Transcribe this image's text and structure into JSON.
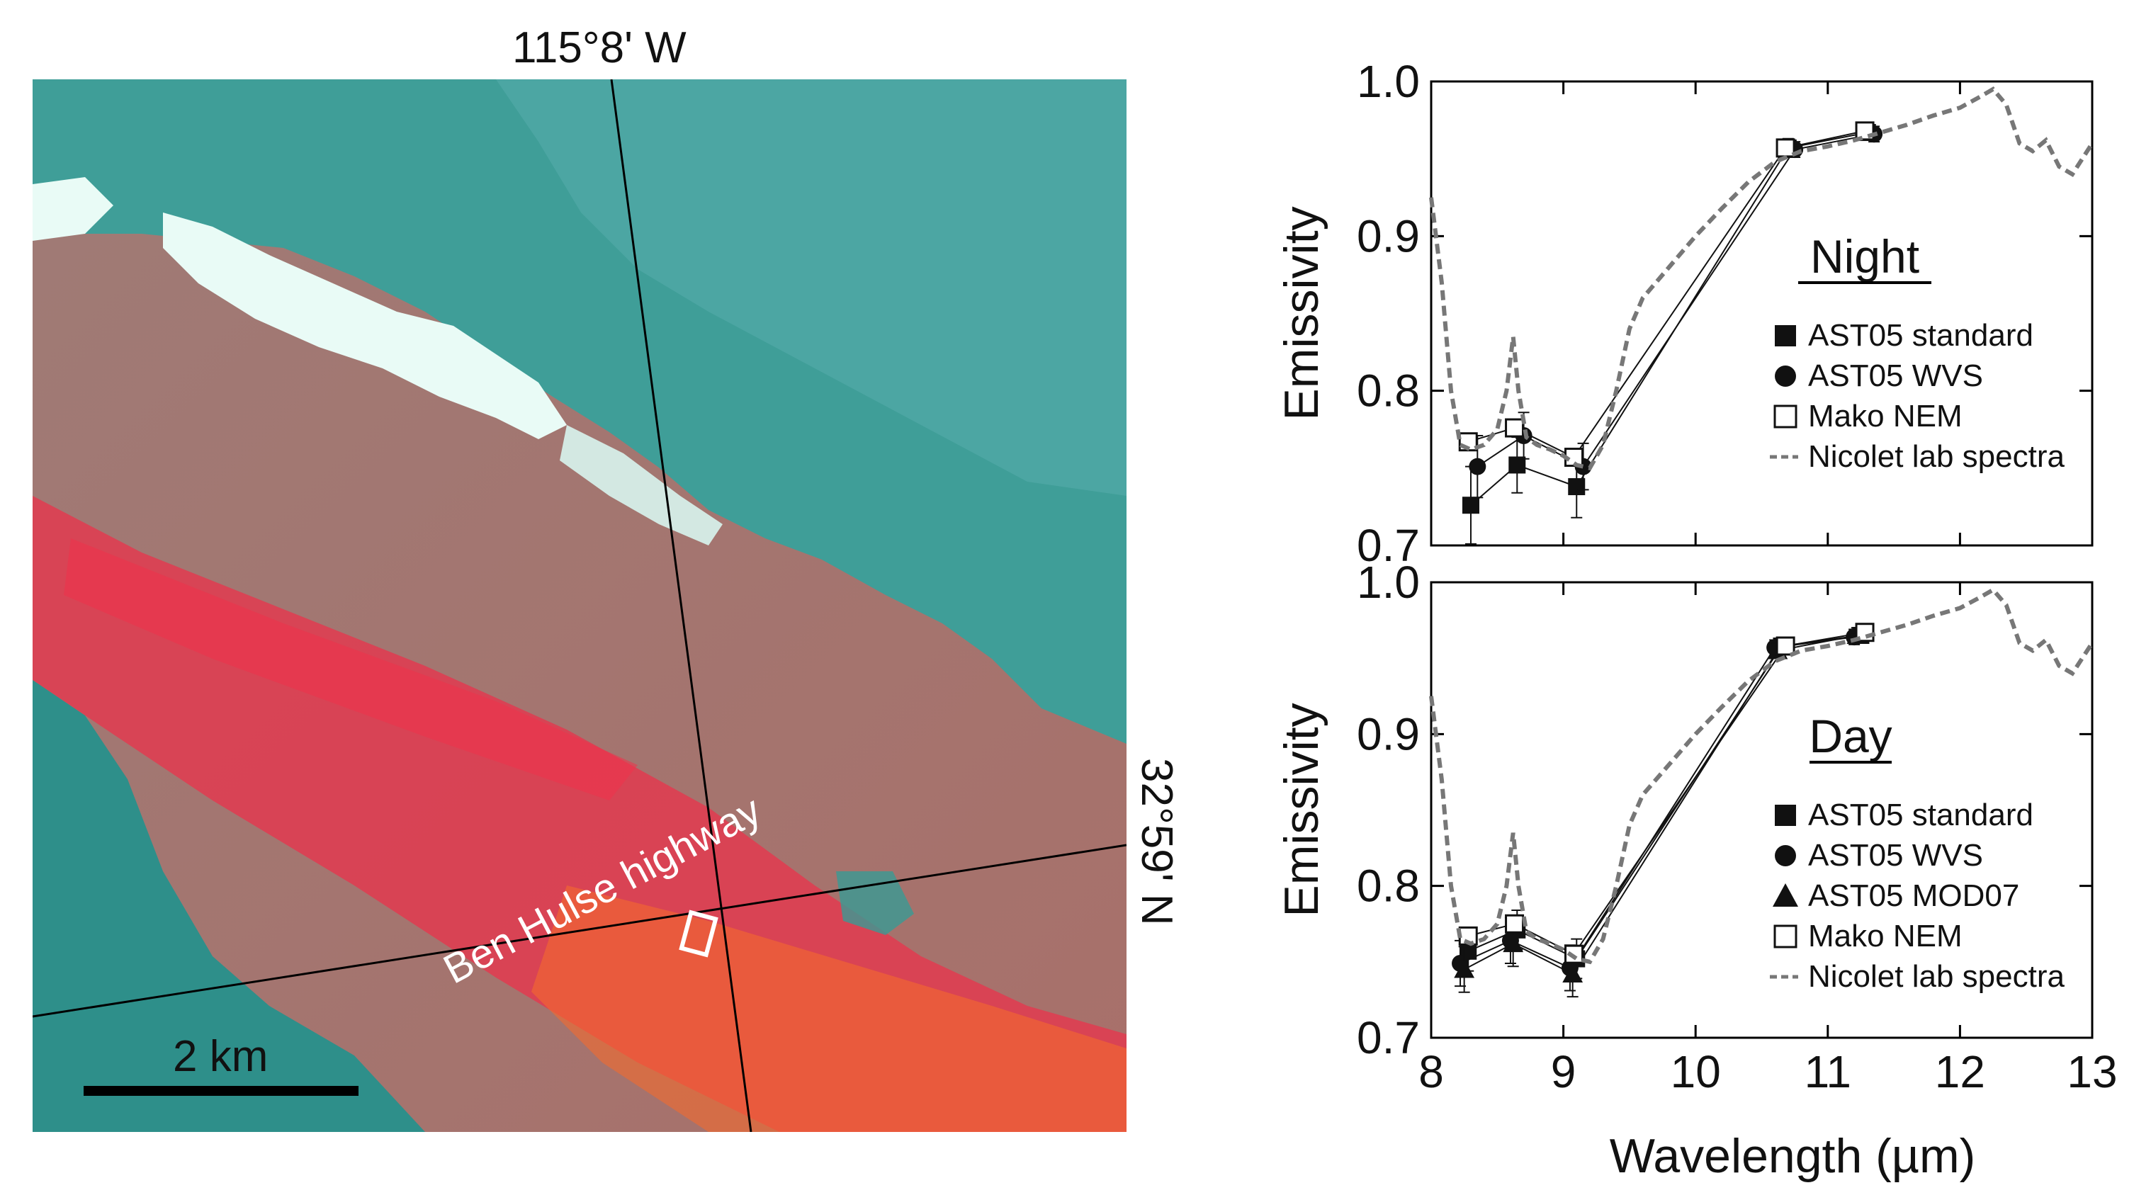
{
  "map": {
    "longitude_label": "115°8' W",
    "latitude_label": "32°59' N",
    "highway_label": "Ben Hulse highway",
    "scale_label": "2 km",
    "colors": {
      "vegetation": "#3f9e98",
      "bright_veg": "#e9fbf6",
      "bare_soil": "#9f7b76",
      "red_zone": "#e8384c",
      "orange": "#f46a2e",
      "teal_edge": "#2e8f8a"
    }
  },
  "chart_data": [
    {
      "type": "line",
      "panel": "Night",
      "title": "Night",
      "xlabel": "Wavelength (µm)",
      "ylabel": "Emissivity",
      "xlim": [
        8,
        13
      ],
      "ylim": [
        0.7,
        1.0
      ],
      "xticks": [
        "8",
        "9",
        "10",
        "11",
        "12",
        "13"
      ],
      "yticks": [
        "0.7",
        "0.8",
        "0.9",
        "1.0"
      ],
      "series": [
        {
          "name": "AST05 standard",
          "marker": "filled-square",
          "x": [
            8.3,
            8.65,
            9.1,
            10.7,
            11.3
          ],
          "y": [
            0.726,
            0.752,
            0.738,
            0.957,
            0.967
          ],
          "err": [
            0.025,
            0.018,
            0.02,
            0.006,
            0.005
          ]
        },
        {
          "name": "AST05 WVS",
          "marker": "filled-circle",
          "x": [
            8.35,
            8.7,
            9.15,
            10.75,
            11.35
          ],
          "y": [
            0.751,
            0.771,
            0.751,
            0.956,
            0.966
          ],
          "err": [
            0.02,
            0.015,
            0.015,
            0.005,
            0.005
          ]
        },
        {
          "name": "Mako NEM",
          "marker": "open-square",
          "x": [
            8.28,
            8.63,
            9.08,
            10.68,
            11.28
          ],
          "y": [
            0.767,
            0.776,
            0.757,
            0.957,
            0.968
          ],
          "err": [
            0,
            0,
            0,
            0,
            0
          ]
        },
        {
          "name": "Nicolet lab spectra",
          "marker": "dashed-line",
          "x": [
            8.0,
            8.08,
            8.15,
            8.22,
            8.3,
            8.4,
            8.5,
            8.57,
            8.62,
            8.66,
            8.72,
            8.8,
            8.9,
            9.0,
            9.1,
            9.2,
            9.3,
            9.4,
            9.5,
            9.6,
            9.8,
            10.0,
            10.2,
            10.4,
            10.6,
            10.8,
            11.0,
            11.2,
            11.4,
            11.6,
            11.8,
            12.0,
            12.15,
            12.25,
            12.35,
            12.45,
            12.55,
            12.65,
            12.75,
            12.85,
            13.0
          ],
          "y": [
            0.925,
            0.87,
            0.8,
            0.765,
            0.762,
            0.765,
            0.775,
            0.8,
            0.835,
            0.8,
            0.77,
            0.765,
            0.762,
            0.758,
            0.752,
            0.75,
            0.765,
            0.8,
            0.84,
            0.86,
            0.88,
            0.9,
            0.918,
            0.935,
            0.948,
            0.955,
            0.958,
            0.962,
            0.967,
            0.972,
            0.978,
            0.983,
            0.99,
            0.995,
            0.985,
            0.96,
            0.955,
            0.962,
            0.945,
            0.94,
            0.96
          ]
        }
      ]
    },
    {
      "type": "line",
      "panel": "Day",
      "title": "Day",
      "xlabel": "Wavelength (µm)",
      "ylabel": "Emissivity",
      "xlim": [
        8,
        13
      ],
      "ylim": [
        0.7,
        1.0
      ],
      "xticks": [
        "8",
        "9",
        "10",
        "11",
        "12",
        "13"
      ],
      "yticks": [
        "0.7",
        "0.8",
        "0.9",
        "1.0"
      ],
      "series": [
        {
          "name": "AST05 standard",
          "marker": "filled-square",
          "x": [
            8.28,
            8.65,
            9.1,
            10.65,
            11.25
          ],
          "y": [
            0.757,
            0.771,
            0.752,
            0.958,
            0.965
          ],
          "err": [
            0.013,
            0.013,
            0.013,
            0.005,
            0.005
          ]
        },
        {
          "name": "AST05 WVS",
          "marker": "filled-circle",
          "x": [
            8.22,
            8.6,
            9.05,
            10.6,
            11.2
          ],
          "y": [
            0.749,
            0.764,
            0.746,
            0.957,
            0.964
          ],
          "err": [
            0.015,
            0.015,
            0.015,
            0.005,
            0.005
          ]
        },
        {
          "name": "AST05 MOD07",
          "marker": "filled-triangle",
          "x": [
            8.25,
            8.62,
            9.07,
            10.62,
            11.22
          ],
          "y": [
            0.745,
            0.762,
            0.742,
            0.955,
            0.965
          ],
          "err": [
            0.015,
            0.015,
            0.015,
            0.005,
            0.005
          ]
        },
        {
          "name": "Mako NEM",
          "marker": "open-square",
          "x": [
            8.28,
            8.63,
            9.08,
            10.68,
            11.28
          ],
          "y": [
            0.767,
            0.775,
            0.755,
            0.958,
            0.967
          ],
          "err": [
            0,
            0,
            0,
            0,
            0
          ]
        },
        {
          "name": "Nicolet lab spectra",
          "marker": "dashed-line",
          "x": [
            8.0,
            8.08,
            8.15,
            8.22,
            8.3,
            8.4,
            8.5,
            8.57,
            8.62,
            8.66,
            8.72,
            8.8,
            8.9,
            9.0,
            9.1,
            9.2,
            9.3,
            9.4,
            9.5,
            9.6,
            9.8,
            10.0,
            10.2,
            10.4,
            10.6,
            10.8,
            11.0,
            11.2,
            11.4,
            11.6,
            11.8,
            12.0,
            12.15,
            12.25,
            12.35,
            12.45,
            12.55,
            12.65,
            12.75,
            12.85,
            13.0
          ],
          "y": [
            0.925,
            0.87,
            0.8,
            0.765,
            0.762,
            0.765,
            0.775,
            0.8,
            0.835,
            0.8,
            0.77,
            0.765,
            0.762,
            0.758,
            0.752,
            0.75,
            0.765,
            0.8,
            0.84,
            0.86,
            0.88,
            0.9,
            0.918,
            0.935,
            0.948,
            0.955,
            0.958,
            0.962,
            0.967,
            0.972,
            0.978,
            0.983,
            0.99,
            0.995,
            0.985,
            0.96,
            0.955,
            0.962,
            0.945,
            0.94,
            0.96
          ]
        }
      ]
    }
  ]
}
